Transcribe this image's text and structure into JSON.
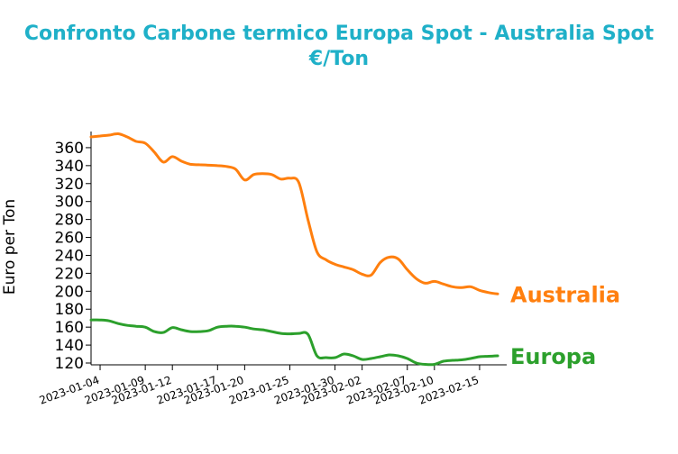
{
  "title_lines": [
    "Confronto Carbone termico Europa Spot - Australia Spot",
    "€/Ton"
  ],
  "colors": {
    "title": "#1fb0c8",
    "australia": "#ff7f0e",
    "europa": "#2ca02c"
  },
  "chart_data": {
    "type": "line",
    "title": "Confronto Carbone termico Europa Spot - Australia Spot €/Ton",
    "xlabel": "",
    "ylabel": "Euro per Ton",
    "ylim": [
      118,
      378
    ],
    "yticks": [
      120,
      140,
      160,
      180,
      200,
      220,
      240,
      260,
      280,
      300,
      320,
      340,
      360
    ],
    "xlim": [
      "2023-01-03",
      "2023-02-18"
    ],
    "xticks": [
      "2023-01-04",
      "2023-01-09",
      "2023-01-12",
      "2023-01-17",
      "2023-01-20",
      "2023-01-25",
      "2023-01-30",
      "2023-02-02",
      "2023-02-07",
      "2023-02-10",
      "2023-02-15"
    ],
    "grid": false,
    "legend": "series labels at right end",
    "series": [
      {
        "name": "Australia",
        "color": "#ff7f0e",
        "points": [
          [
            "2023-01-03",
            372
          ],
          [
            "2023-01-04",
            373
          ],
          [
            "2023-01-05",
            374
          ],
          [
            "2023-01-06",
            375.5
          ],
          [
            "2023-01-07",
            372
          ],
          [
            "2023-01-08",
            367
          ],
          [
            "2023-01-09",
            365
          ],
          [
            "2023-01-10",
            355
          ],
          [
            "2023-01-11",
            344
          ],
          [
            "2023-01-12",
            350
          ],
          [
            "2023-01-13",
            345
          ],
          [
            "2023-01-14",
            341.5
          ],
          [
            "2023-01-15",
            341
          ],
          [
            "2023-01-16",
            340.5
          ],
          [
            "2023-01-17",
            340
          ],
          [
            "2023-01-18",
            339
          ],
          [
            "2023-01-19",
            336
          ],
          [
            "2023-01-20",
            324
          ],
          [
            "2023-01-21",
            330
          ],
          [
            "2023-01-22",
            331
          ],
          [
            "2023-01-23",
            330
          ],
          [
            "2023-01-24",
            325
          ],
          [
            "2023-01-25",
            326
          ],
          [
            "2023-01-26",
            321
          ],
          [
            "2023-01-27",
            280
          ],
          [
            "2023-01-28",
            244
          ],
          [
            "2023-01-29",
            235
          ],
          [
            "2023-01-30",
            230
          ],
          [
            "2023-01-31",
            227
          ],
          [
            "2023-02-01",
            224
          ],
          [
            "2023-02-02",
            219
          ],
          [
            "2023-02-03",
            218
          ],
          [
            "2023-02-04",
            232
          ],
          [
            "2023-02-05",
            238
          ],
          [
            "2023-02-06",
            236
          ],
          [
            "2023-02-07",
            224
          ],
          [
            "2023-02-08",
            214
          ],
          [
            "2023-02-09",
            209
          ],
          [
            "2023-02-10",
            211
          ],
          [
            "2023-02-11",
            208
          ],
          [
            "2023-02-12",
            205
          ],
          [
            "2023-02-13",
            204
          ],
          [
            "2023-02-14",
            205
          ],
          [
            "2023-02-15",
            201
          ],
          [
            "2023-02-16",
            198.5
          ],
          [
            "2023-02-17",
            197
          ]
        ]
      },
      {
        "name": "Europa",
        "color": "#2ca02c",
        "points": [
          [
            "2023-01-03",
            168
          ],
          [
            "2023-01-04",
            168
          ],
          [
            "2023-01-05",
            167
          ],
          [
            "2023-01-06",
            164
          ],
          [
            "2023-01-07",
            162
          ],
          [
            "2023-01-08",
            161
          ],
          [
            "2023-01-09",
            160
          ],
          [
            "2023-01-10",
            155
          ],
          [
            "2023-01-11",
            154
          ],
          [
            "2023-01-12",
            159.5
          ],
          [
            "2023-01-13",
            157
          ],
          [
            "2023-01-14",
            155
          ],
          [
            "2023-01-15",
            155
          ],
          [
            "2023-01-16",
            156
          ],
          [
            "2023-01-17",
            160
          ],
          [
            "2023-01-18",
            161
          ],
          [
            "2023-01-19",
            161
          ],
          [
            "2023-01-20",
            160
          ],
          [
            "2023-01-21",
            158
          ],
          [
            "2023-01-22",
            157
          ],
          [
            "2023-01-23",
            155
          ],
          [
            "2023-01-24",
            153
          ],
          [
            "2023-01-25",
            152.5
          ],
          [
            "2023-01-26",
            153
          ],
          [
            "2023-01-27",
            152
          ],
          [
            "2023-01-28",
            128
          ],
          [
            "2023-01-29",
            126
          ],
          [
            "2023-01-30",
            126
          ],
          [
            "2023-01-31",
            130
          ],
          [
            "2023-02-01",
            128
          ],
          [
            "2023-02-02",
            124
          ],
          [
            "2023-02-03",
            125
          ],
          [
            "2023-02-04",
            127
          ],
          [
            "2023-02-05",
            129
          ],
          [
            "2023-02-06",
            128
          ],
          [
            "2023-02-07",
            125
          ],
          [
            "2023-02-08",
            120
          ],
          [
            "2023-02-09",
            118.5
          ],
          [
            "2023-02-10",
            118.5
          ],
          [
            "2023-02-11",
            122
          ],
          [
            "2023-02-12",
            123
          ],
          [
            "2023-02-13",
            123.5
          ],
          [
            "2023-02-14",
            125
          ],
          [
            "2023-02-15",
            127
          ],
          [
            "2023-02-16",
            127.5
          ],
          [
            "2023-02-17",
            128
          ]
        ]
      }
    ]
  }
}
